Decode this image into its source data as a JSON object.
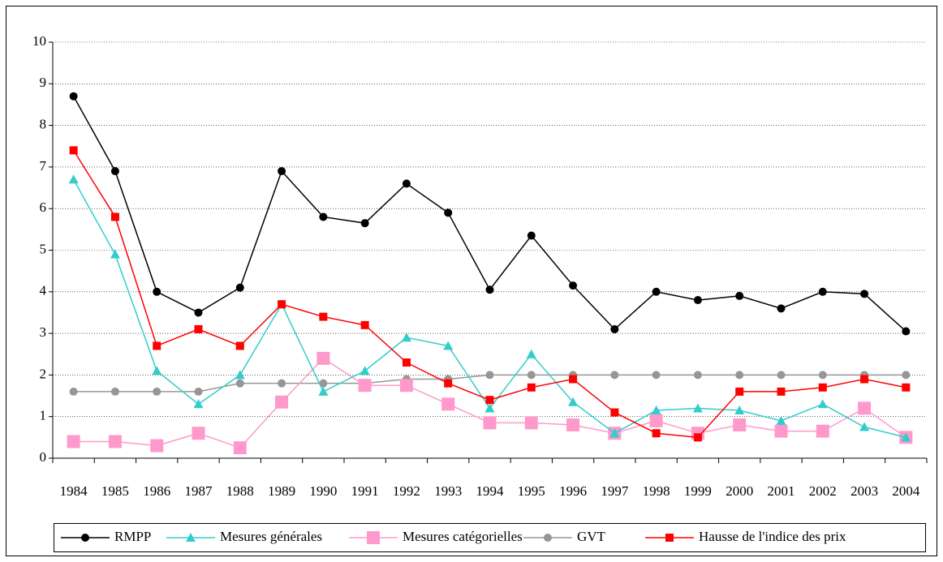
{
  "chart_data": {
    "type": "line",
    "categories": [
      "1984",
      "1985",
      "1986",
      "1987",
      "1988",
      "1989",
      "1990",
      "1991",
      "1992",
      "1993",
      "1994",
      "1995",
      "1996",
      "1997",
      "1998",
      "1999",
      "2000",
      "2001",
      "2002",
      "2003",
      "2004"
    ],
    "ylim": [
      0,
      10
    ],
    "yticks": [
      0,
      1,
      2,
      3,
      4,
      5,
      6,
      7,
      8,
      9,
      10
    ],
    "grid": true,
    "legend": "bottom",
    "series": [
      {
        "name": "RMPP",
        "color": "#000000",
        "marker": "circle",
        "values": [
          8.7,
          6.9,
          4.0,
          3.5,
          4.1,
          6.9,
          5.8,
          5.65,
          6.6,
          5.9,
          4.05,
          5.35,
          4.15,
          3.1,
          4.0,
          3.8,
          3.9,
          3.6,
          4.0,
          3.95,
          3.05
        ]
      },
      {
        "name": "Mesures générales",
        "color": "#33cccc",
        "marker": "triangle",
        "values": [
          6.7,
          4.9,
          2.1,
          1.3,
          2.0,
          3.7,
          1.6,
          2.1,
          2.9,
          2.7,
          1.2,
          2.5,
          1.35,
          0.6,
          1.15,
          1.2,
          1.15,
          0.9,
          1.3,
          0.75,
          0.5
        ]
      },
      {
        "name": "Mesures catégorielles",
        "color": "#ff99cc",
        "marker": "bigsquare",
        "values": [
          0.4,
          0.4,
          0.3,
          0.6,
          0.25,
          1.35,
          2.4,
          1.75,
          1.75,
          1.3,
          0.85,
          0.85,
          0.8,
          0.6,
          0.9,
          0.6,
          0.8,
          0.65,
          0.65,
          1.2,
          0.5
        ]
      },
      {
        "name": "GVT",
        "color": "#969696",
        "marker": "circle",
        "values": [
          1.6,
          1.6,
          1.6,
          1.6,
          1.8,
          1.8,
          1.8,
          1.8,
          1.9,
          1.9,
          2,
          2,
          2,
          2,
          2,
          2,
          2,
          2,
          2,
          2,
          2
        ]
      },
      {
        "name": "Hausse de l'indice des prix",
        "color": "#ff0000",
        "marker": "square",
        "values": [
          7.4,
          5.8,
          2.7,
          3.1,
          2.7,
          3.7,
          3.4,
          3.2,
          2.3,
          1.8,
          1.4,
          1.7,
          1.9,
          1.1,
          0.6,
          0.5,
          1.6,
          1.6,
          1.7,
          1.9,
          1.7
        ]
      }
    ]
  }
}
